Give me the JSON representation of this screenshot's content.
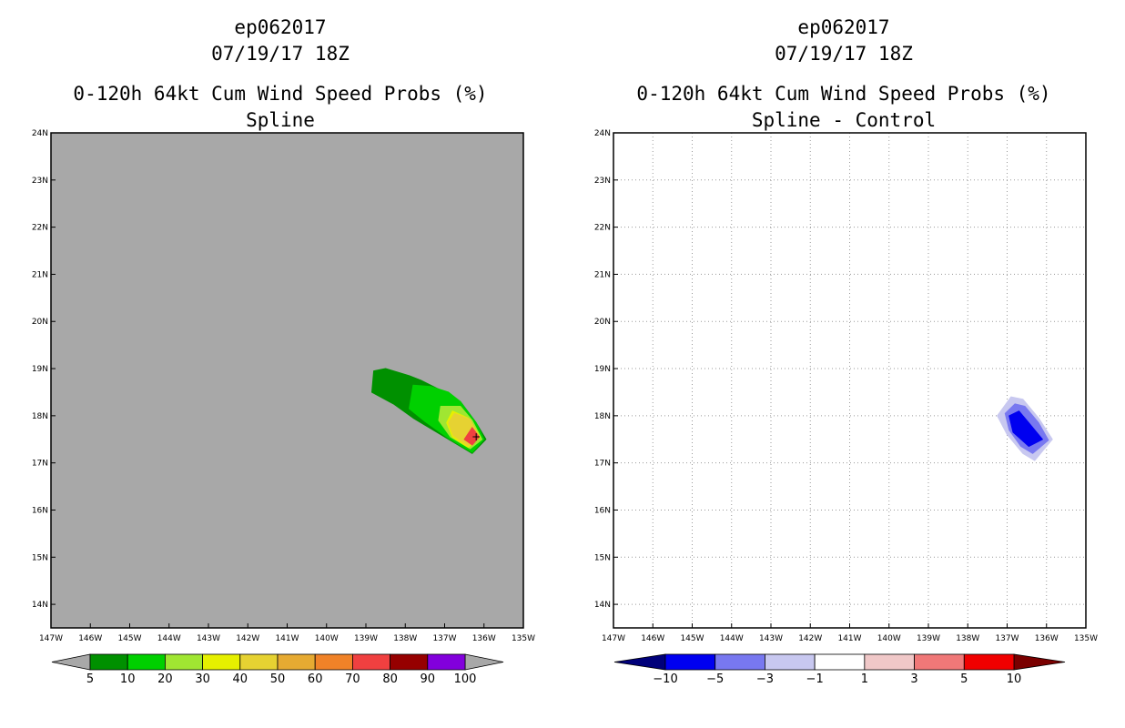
{
  "chart_data": [
    {
      "type": "heatmap",
      "storm_id": "ep062017",
      "datetime": "07/19/17 18Z",
      "title": "0-120h 64kt Cum Wind Speed Probs (%)",
      "subtitle": "Spline",
      "xlim": [
        -147,
        -135
      ],
      "ylim": [
        13.5,
        24
      ],
      "x_tick_labels": [
        "147W",
        "146W",
        "145W",
        "144W",
        "143W",
        "142W",
        "141W",
        "140W",
        "139W",
        "138W",
        "137W",
        "136W",
        "135W"
      ],
      "y_tick_labels": [
        "14N",
        "15N",
        "16N",
        "17N",
        "18N",
        "19N",
        "20N",
        "21N",
        "22N",
        "23N",
        "24N"
      ],
      "grid": false,
      "background": "#a8a8a8",
      "colorbar": {
        "labels": [
          "5",
          "10",
          "20",
          "30",
          "40",
          "50",
          "60",
          "70",
          "80",
          "90",
          "100"
        ],
        "colors": [
          "#009000",
          "#00d000",
          "#a0e632",
          "#e6f000",
          "#e6d232",
          "#e6aa32",
          "#f08228",
          "#f04040",
          "#960000",
          "#8200dc"
        ],
        "end_color": "#a8a8a8"
      },
      "contours": [
        {
          "level": 5,
          "color": "#009000",
          "points": [
            [
              -138.8,
              18.95
            ],
            [
              -138.5,
              19.0
            ],
            [
              -137.9,
              18.85
            ],
            [
              -137.6,
              18.75
            ],
            [
              -137.0,
              18.5
            ],
            [
              -136.6,
              18.3
            ],
            [
              -136.2,
              17.85
            ],
            [
              -135.95,
              17.5
            ],
            [
              -136.3,
              17.2
            ],
            [
              -137.1,
              17.6
            ],
            [
              -137.8,
              17.95
            ],
            [
              -138.3,
              18.25
            ],
            [
              -138.85,
              18.5
            ]
          ]
        },
        {
          "level": 10,
          "color": "#00d000",
          "points": [
            [
              -137.8,
              18.65
            ],
            [
              -137.35,
              18.62
            ],
            [
              -136.9,
              18.5
            ],
            [
              -136.6,
              18.3
            ],
            [
              -136.2,
              17.85
            ],
            [
              -136.0,
              17.5
            ],
            [
              -136.3,
              17.22
            ],
            [
              -136.9,
              17.52
            ],
            [
              -137.5,
              17.88
            ],
            [
              -137.9,
              18.15
            ]
          ]
        },
        {
          "level": 20,
          "color": "#a0e632",
          "points": [
            [
              -137.1,
              18.2
            ],
            [
              -136.6,
              18.2
            ],
            [
              -136.3,
              17.9
            ],
            [
              -136.05,
              17.5
            ],
            [
              -136.35,
              17.3
            ],
            [
              -136.85,
              17.55
            ],
            [
              -137.15,
              17.9
            ]
          ]
        },
        {
          "level": 30,
          "color": "#e6f000",
          "points": [
            [
              -136.8,
              18.1
            ],
            [
              -136.4,
              17.95
            ],
            [
              -136.1,
              17.55
            ],
            [
              -136.4,
              17.33
            ],
            [
              -136.8,
              17.55
            ],
            [
              -136.95,
              17.85
            ]
          ]
        },
        {
          "level": 40,
          "color": "#e6d232",
          "points": [
            [
              -136.75,
              18.05
            ],
            [
              -136.35,
              17.92
            ],
            [
              -136.12,
              17.55
            ],
            [
              -136.4,
              17.36
            ],
            [
              -136.78,
              17.58
            ],
            [
              -136.9,
              17.85
            ]
          ]
        },
        {
          "level": 70,
          "color": "#f04040",
          "points": [
            [
              -136.3,
              17.75
            ],
            [
              -136.12,
              17.55
            ],
            [
              -136.3,
              17.38
            ],
            [
              -136.5,
              17.5
            ]
          ]
        }
      ],
      "marker": {
        "x": -136.2,
        "y": 17.55,
        "symbol": "+"
      }
    },
    {
      "type": "heatmap",
      "storm_id": "ep062017",
      "datetime": "07/19/17 18Z",
      "title": "0-120h 64kt Cum Wind Speed Probs (%)",
      "subtitle": "Spline - Control",
      "xlim": [
        -147,
        -135
      ],
      "ylim": [
        13.5,
        24
      ],
      "x_tick_labels": [
        "147W",
        "146W",
        "145W",
        "144W",
        "143W",
        "142W",
        "141W",
        "140W",
        "139W",
        "138W",
        "137W",
        "136W",
        "135W"
      ],
      "y_tick_labels": [
        "14N",
        "15N",
        "16N",
        "17N",
        "18N",
        "19N",
        "20N",
        "21N",
        "22N",
        "23N",
        "24N"
      ],
      "grid": true,
      "background": "#ffffff",
      "colorbar": {
        "labels": [
          "−10",
          "−5",
          "−3",
          "−1",
          "1",
          "3",
          "5",
          "10"
        ],
        "colors": [
          "#0000f0",
          "#7878f0",
          "#c8c8f0",
          "#ffffff",
          "#f0c8c8",
          "#f07878",
          "#f00000"
        ],
        "end_left_color": "#00007a",
        "end_right_color": "#7a0000"
      },
      "contours": [
        {
          "level": -1,
          "color": "#c8c8f0",
          "points": [
            [
              -137.25,
              18.0
            ],
            [
              -136.9,
              18.4
            ],
            [
              -136.6,
              18.35
            ],
            [
              -136.2,
              17.95
            ],
            [
              -135.85,
              17.5
            ],
            [
              -136.3,
              17.05
            ],
            [
              -136.6,
              17.2
            ],
            [
              -137.0,
              17.6
            ]
          ]
        },
        {
          "level": -3,
          "color": "#7878f0",
          "points": [
            [
              -137.05,
              18.05
            ],
            [
              -136.8,
              18.25
            ],
            [
              -136.55,
              18.2
            ],
            [
              -136.2,
              17.85
            ],
            [
              -135.95,
              17.48
            ],
            [
              -136.35,
              17.2
            ],
            [
              -136.65,
              17.35
            ],
            [
              -136.95,
              17.7
            ]
          ]
        },
        {
          "level": -5,
          "color": "#0000f0",
          "points": [
            [
              -136.95,
              18.0
            ],
            [
              -136.7,
              18.1
            ],
            [
              -136.45,
              17.85
            ],
            [
              -136.1,
              17.5
            ],
            [
              -136.45,
              17.35
            ],
            [
              -136.85,
              17.65
            ]
          ]
        }
      ]
    }
  ]
}
